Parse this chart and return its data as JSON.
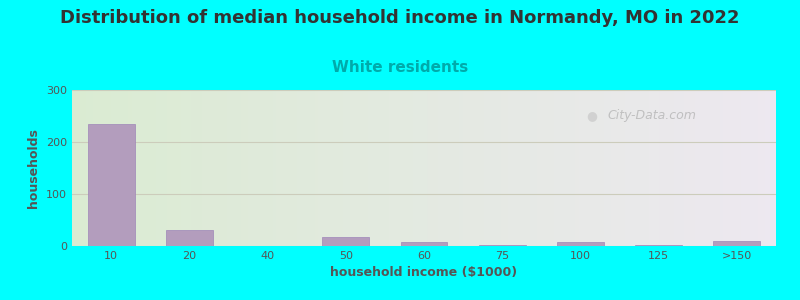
{
  "title": "Distribution of median household income in Normandy, MO in 2022",
  "subtitle": "White residents",
  "xlabel": "household income ($1000)",
  "ylabel": "households",
  "background_color": "#00FFFF",
  "bar_color": "#b39dbd",
  "bar_edge_color": "#9e86b8",
  "categories": [
    "10",
    "20",
    "40",
    "50",
    "60",
    "75",
    "100",
    "125",
    ">150"
  ],
  "values": [
    235,
    30,
    0,
    18,
    8,
    2,
    8,
    2,
    10
  ],
  "ylim": [
    0,
    300
  ],
  "yticks": [
    0,
    100,
    200,
    300
  ],
  "title_fontsize": 13,
  "subtitle_fontsize": 11,
  "subtitle_color": "#00AAAA",
  "axis_label_fontsize": 9,
  "tick_fontsize": 8,
  "watermark_text": "City-Data.com",
  "grid_color": "#ccccbb",
  "title_color": "#333333",
  "ylabel_color": "#555555",
  "xlabel_color": "#555555",
  "tick_color": "#555555",
  "gradient_left": "#daebd2",
  "gradient_right": "#ede8f0"
}
